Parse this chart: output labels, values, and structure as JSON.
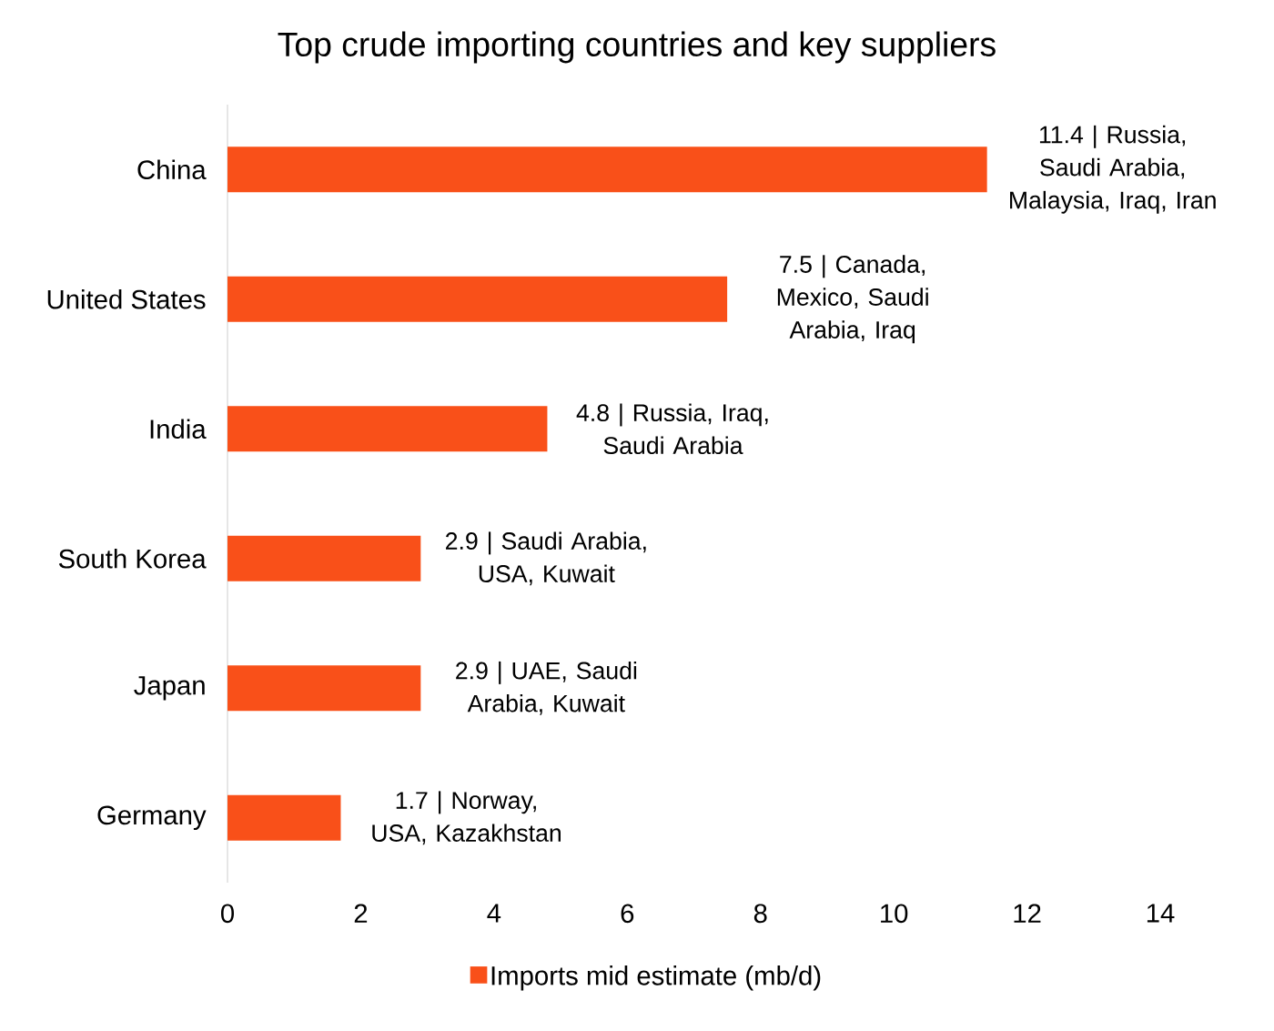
{
  "chart_data": {
    "type": "bar",
    "orientation": "horizontal",
    "title": "Top crude importing countries and key suppliers",
    "categories": [
      "China",
      "United States",
      "India",
      "South Korea",
      "Japan",
      "Germany"
    ],
    "series": [
      {
        "name": "Imports mid estimate (mb/d)",
        "color": "#f95019",
        "values": [
          11.4,
          7.5,
          4.8,
          2.9,
          2.9,
          1.7
        ],
        "value_labels": [
          "11.4 | Russia, Saudi Arabia, Malaysia, Iraq, Iran",
          "7.5 | Canada, Mexico, Saudi Arabia, Iraq",
          "4.8 | Russia, Iraq, Saudi Arabia",
          "2.9 | Saudi Arabia, USA, Kuwait",
          "2.9 | UAE, Saudi Arabia, Kuwait",
          "1.7 | Norway, USA, Kazakhstan"
        ]
      }
    ],
    "xlim": [
      0,
      14
    ],
    "xticks": [
      0,
      2,
      4,
      6,
      8,
      10,
      12,
      14
    ],
    "legend": "bottom"
  }
}
